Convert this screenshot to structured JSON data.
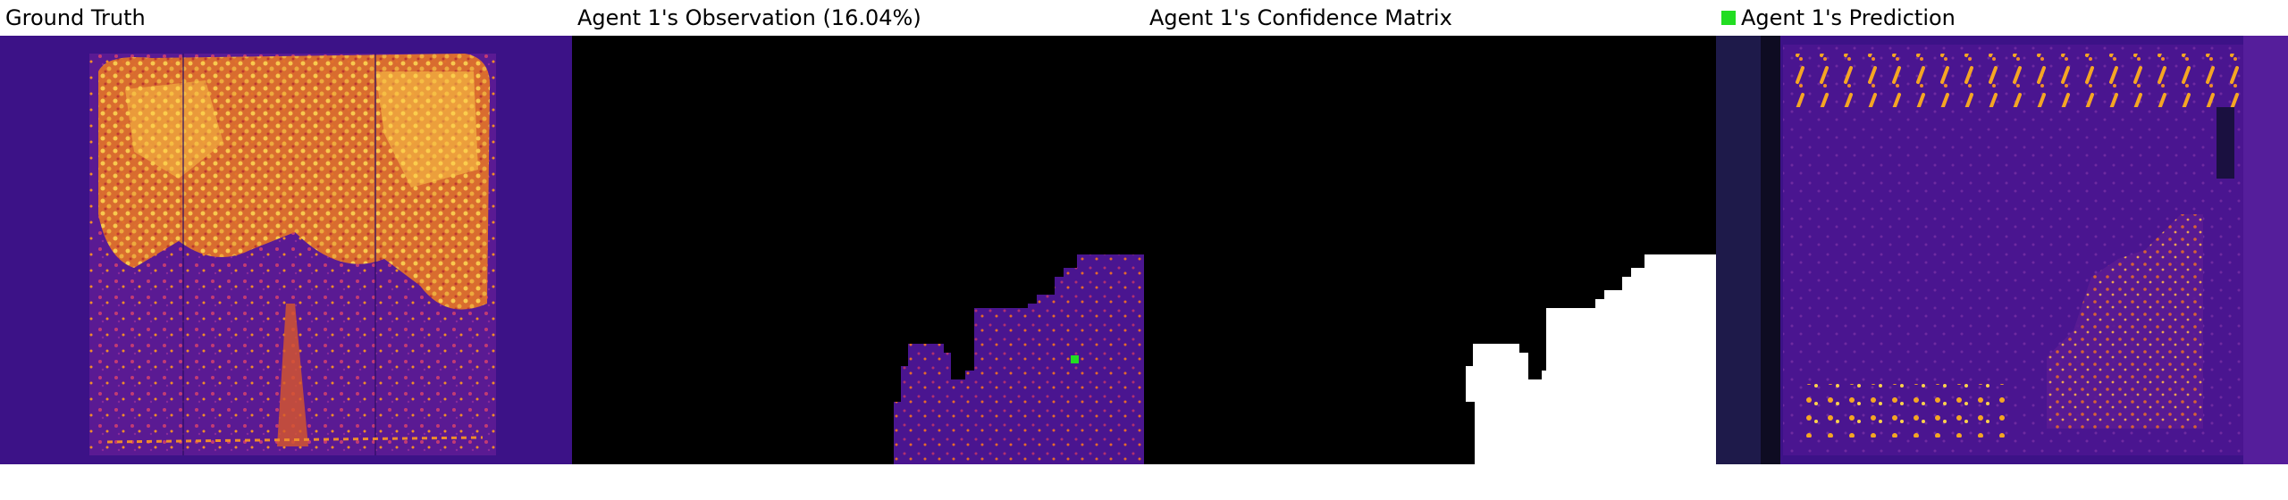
{
  "panels": [
    {
      "id": "ground-truth",
      "title": "Ground Truth"
    },
    {
      "id": "observation",
      "title": "Agent 1's Observation (16.04%)"
    },
    {
      "id": "confidence",
      "title": "Agent 1's Confidence Matrix"
    },
    {
      "id": "prediction",
      "title": "Agent 1's Prediction"
    }
  ],
  "colors": {
    "heat_background": "#3c1287",
    "heat_mid": "#7a1f9e",
    "heat_hot": "#f2a020",
    "heat_bright": "#ffd24a",
    "mask_black": "#000000",
    "mask_white": "#ffffff",
    "agent_marker": "#22dd22"
  },
  "legend": {
    "prediction_marker_icon": "green-square-icon"
  }
}
